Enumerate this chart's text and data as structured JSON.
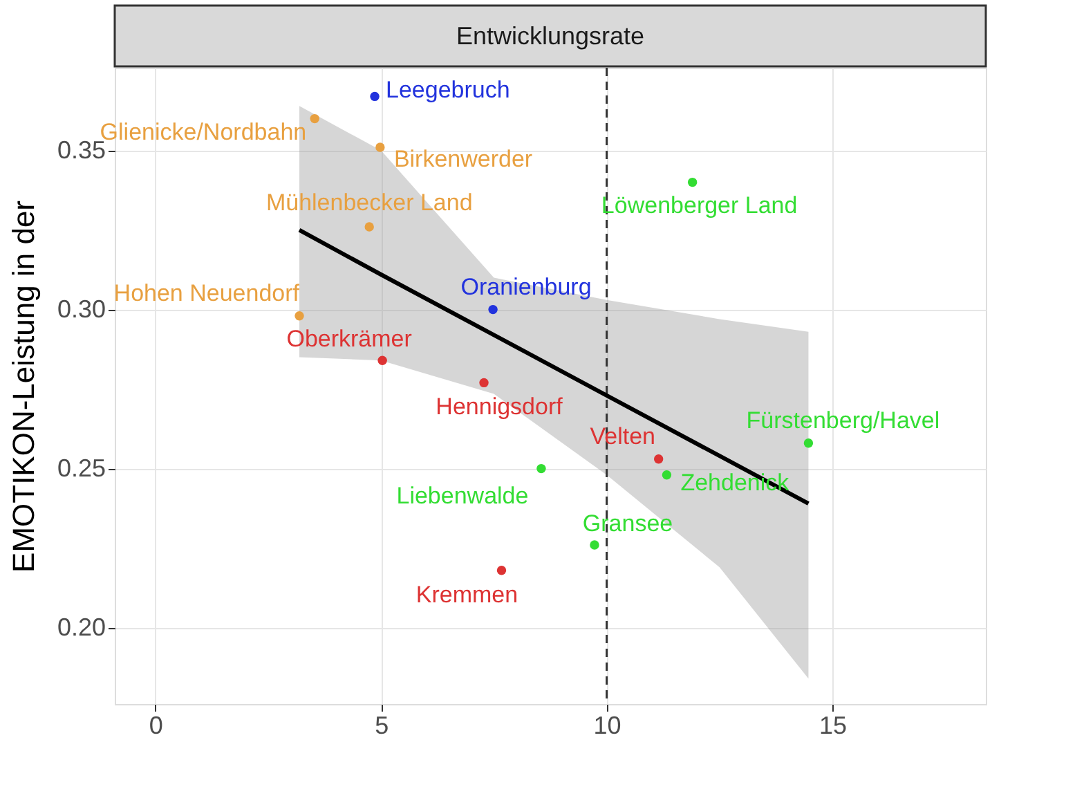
{
  "chart_data": {
    "type": "scatter",
    "title": "Entwicklungsrate",
    "ylabel": "EMOTIKON-Leistung in der",
    "xlim": [
      -0.9,
      18.4
    ],
    "xticks": [
      0,
      5,
      10,
      15
    ],
    "ylim": [
      0.176,
      0.376
    ],
    "yticks": [
      {
        "value": 0.2,
        "label": "0.20"
      },
      {
        "value": 0.25,
        "label": "0.25"
      },
      {
        "value": 0.3,
        "label": "0.30"
      },
      {
        "value": 0.35,
        "label": "0.35"
      }
    ],
    "grid": true,
    "marker": "circle",
    "ref_lines": [
      {
        "axis": "x",
        "value": 10,
        "line_style": "dashed",
        "color": "#333333"
      }
    ],
    "series": [
      {
        "name": "Leegebruch",
        "color": "#2233dd",
        "x": [
          4.86
        ],
        "values": [
          0.367
        ]
      },
      {
        "name": "Glienicke/Nordbahn",
        "color": "#e8a040",
        "x": [
          3.53
        ],
        "values": [
          0.36
        ]
      },
      {
        "name": "Birkenwerder",
        "color": "#e8a040",
        "x": [
          4.98
        ],
        "values": [
          0.351
        ]
      },
      {
        "name": "Mühlenbecker Land",
        "color": "#e8a040",
        "x": [
          4.74
        ],
        "values": [
          0.326
        ]
      },
      {
        "name": "Hohen Neuendorf",
        "color": "#e8a040",
        "x": [
          3.19
        ],
        "values": [
          0.298
        ]
      },
      {
        "name": "Oranienburg",
        "color": "#2233dd",
        "x": [
          7.48
        ],
        "values": [
          0.3
        ]
      },
      {
        "name": "Oberkrämer",
        "color": "#dd3333",
        "x": [
          5.03
        ],
        "values": [
          0.284
        ]
      },
      {
        "name": "Hennigsdorf",
        "color": "#dd3333",
        "x": [
          7.28
        ],
        "values": [
          0.277
        ]
      },
      {
        "name": "Velten",
        "color": "#dd3333",
        "x": [
          11.15
        ],
        "values": [
          0.253
        ]
      },
      {
        "name": "Zehdenick",
        "color": "#33dd33",
        "x": [
          11.33
        ],
        "values": [
          0.248
        ]
      },
      {
        "name": "Fürstenberg/Havel",
        "color": "#33dd33",
        "x": [
          14.47
        ],
        "values": [
          0.258
        ]
      },
      {
        "name": "Liebenwalde",
        "color": "#33dd33",
        "x": [
          8.55
        ],
        "values": [
          0.25
        ]
      },
      {
        "name": "Gransee",
        "color": "#33dd33",
        "x": [
          9.73
        ],
        "values": [
          0.226
        ]
      },
      {
        "name": "Kremmen",
        "color": "#dd3333",
        "x": [
          7.67
        ],
        "values": [
          0.218
        ]
      },
      {
        "name": "Löwenberger Land",
        "color": "#33dd33",
        "x": [
          11.9
        ],
        "values": [
          0.34
        ]
      },
      {
        "type": "line",
        "marker": "none",
        "color": "#000000",
        "x": [
          3.19,
          5,
          7.5,
          10,
          12.5,
          14.47
        ],
        "values": [
          0.325,
          0.311,
          0.292,
          0.273,
          0.254,
          0.239
        ],
        "lower": [
          0.285,
          0.284,
          0.2735,
          0.248,
          0.219,
          0.184
        ],
        "upper": [
          0.364,
          0.35,
          0.31,
          0.303,
          0.297,
          0.293
        ]
      }
    ]
  }
}
